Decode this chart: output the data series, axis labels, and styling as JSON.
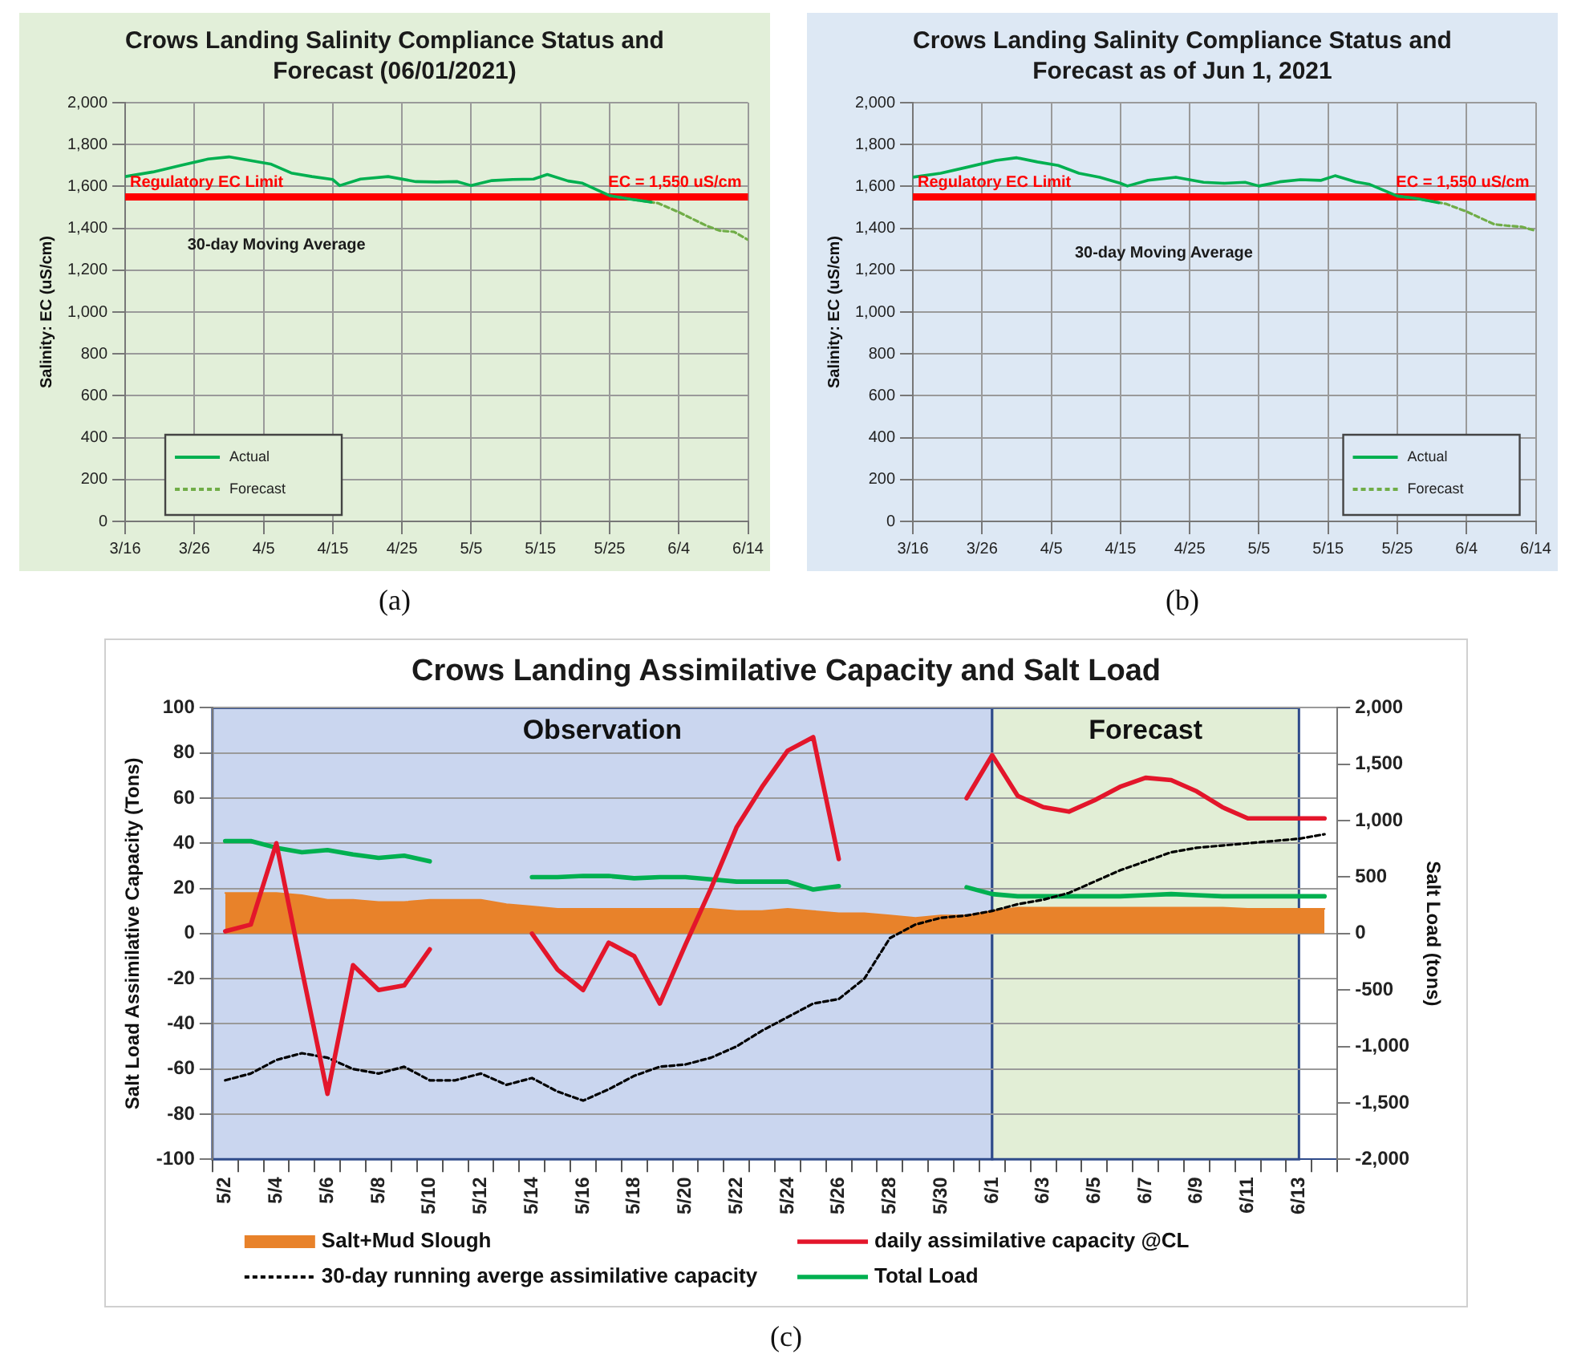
{
  "chart_data": [
    {
      "type": "line",
      "title": "Crows Landing Salinity Compliance Status and Forecast (06/01/2021)",
      "ylabel": "Salinity: EC (uS/cm)",
      "xlim": [
        "--03-16",
        "--06-14"
      ],
      "xticks": [
        {
          "value": "--03-16",
          "label": "3/16"
        },
        {
          "value": "--03-26",
          "label": "3/26"
        },
        {
          "value": "--04-05",
          "label": "4/5"
        },
        {
          "value": "--04-15",
          "label": "4/15"
        },
        {
          "value": "--04-25",
          "label": "4/25"
        },
        {
          "value": "--05-05",
          "label": "5/5"
        },
        {
          "value": "--05-15",
          "label": "5/15"
        },
        {
          "value": "--05-25",
          "label": "5/25"
        },
        {
          "value": "--06-04",
          "label": "6/4"
        },
        {
          "value": "--06-14",
          "label": "6/14"
        }
      ],
      "ylim": [
        0,
        2000
      ],
      "yticks": [
        0,
        200,
        400,
        600,
        800,
        {
          "value": 1000,
          "label": "1,000"
        },
        {
          "value": 1200,
          "label": "1,200"
        },
        {
          "value": 1400,
          "label": "1,400"
        },
        {
          "value": 1600,
          "label": "1,600"
        },
        {
          "value": 1800,
          "label": "1,800"
        },
        {
          "value": 2000,
          "label": "2,000"
        }
      ],
      "series": [
        {
          "name": "Actual",
          "color": "#00b050",
          "x": [
            "--03-16",
            "--03-20",
            "--03-24",
            "--03-28",
            "--03-31",
            "--04-03",
            "--04-06",
            "--04-09",
            "--04-12",
            "--04-15",
            "--04-16",
            "--04-19",
            "--04-23",
            "--04-27",
            "--04-30",
            "--05-03",
            "--05-05",
            "--05-08",
            "--05-11",
            "--05-14",
            "--05-16",
            "--05-19",
            "--05-21",
            "--05-25",
            "--05-28",
            "--05-31"
          ],
          "values": [
            1647,
            1669,
            1700,
            1731,
            1741,
            1724,
            1707,
            1664,
            1647,
            1633,
            1604,
            1635,
            1647,
            1623,
            1621,
            1623,
            1604,
            1628,
            1633,
            1635,
            1657,
            1626,
            1616,
            1556,
            1539,
            1525
          ]
        },
        {
          "name": "Forecast",
          "color": "#70ad47",
          "line_style": "dashed",
          "x": [
            "--05-25",
            "--05-28",
            "--06-01",
            "--06-04",
            "--06-08",
            "--06-10",
            "--06-12",
            "--06-14"
          ],
          "values": [
            1556,
            1539,
            1520,
            1477,
            1412,
            1388,
            1383,
            1345
          ]
        }
      ],
      "ref_lines": [
        {
          "axis": "y",
          "value": 1550,
          "label": "EC = 1,550 uS/cm",
          "color": "#ff0000"
        }
      ],
      "annotations": [
        {
          "text": "Regulatory EC Limit",
          "x": "--03-16",
          "y": 1550
        },
        "30-day Moving Average",
        "(a)"
      ],
      "grid": true,
      "legend": "bottom left"
    },
    {
      "type": "line",
      "title": "Crows Landing Salinity Compliance Status and Forecast as of Jun 1, 2021",
      "ylabel": "Salinity: EC (uS/cm)",
      "xlim": [
        "--03-16",
        "--06-14"
      ],
      "xticks": [
        {
          "value": "--03-16",
          "label": "3/16"
        },
        {
          "value": "--03-26",
          "label": "3/26"
        },
        {
          "value": "--04-05",
          "label": "4/5"
        },
        {
          "value": "--04-15",
          "label": "4/15"
        },
        {
          "value": "--04-25",
          "label": "4/25"
        },
        {
          "value": "--05-05",
          "label": "5/5"
        },
        {
          "value": "--05-15",
          "label": "5/15"
        },
        {
          "value": "--05-25",
          "label": "5/25"
        },
        {
          "value": "--06-04",
          "label": "6/4"
        },
        {
          "value": "--06-14",
          "label": "6/14"
        }
      ],
      "ylim": [
        0,
        2000
      ],
      "yticks": [
        0,
        200,
        400,
        600,
        800,
        {
          "value": 1000,
          "label": "1,000"
        },
        {
          "value": 1200,
          "label": "1,200"
        },
        {
          "value": 1400,
          "label": "1,400"
        },
        {
          "value": 1600,
          "label": "1,600"
        },
        {
          "value": 1800,
          "label": "1,800"
        },
        {
          "value": 2000,
          "label": "2,000"
        }
      ],
      "series": [
        {
          "name": "Actual",
          "color": "#00b050",
          "x": [
            "--03-16",
            "--03-20",
            "--03-24",
            "--03-28",
            "--03-31",
            "--04-03",
            "--04-06",
            "--04-09",
            "--04-12",
            "--04-15",
            "--04-16",
            "--04-19",
            "--04-23",
            "--04-27",
            "--04-30",
            "--05-03",
            "--05-05",
            "--05-08",
            "--05-11",
            "--05-14",
            "--05-16",
            "--05-19",
            "--05-21",
            "--05-25",
            "--05-28",
            "--05-31"
          ],
          "values": [
            1644,
            1663,
            1693,
            1724,
            1737,
            1717,
            1700,
            1663,
            1644,
            1615,
            1602,
            1629,
            1644,
            1620,
            1615,
            1620,
            1602,
            1622,
            1632,
            1629,
            1651,
            1622,
            1610,
            1554,
            1541,
            1522
          ]
        },
        {
          "name": "Forecast",
          "color": "#70ad47",
          "line_style": "dashed",
          "x": [
            "--05-25",
            "--05-28",
            "--06-01",
            "--06-04",
            "--06-08",
            "--06-10",
            "--06-12",
            "--06-14"
          ],
          "values": [
            1554,
            1541,
            1517,
            1480,
            1419,
            1412,
            1407,
            1388
          ]
        }
      ],
      "ref_lines": [
        {
          "axis": "y",
          "value": 1550,
          "label": "EC = 1,550 uS/cm",
          "color": "#ff0000"
        }
      ],
      "annotations": [
        {
          "text": "Regulatory EC Limit",
          "x": "--03-16",
          "y": 1550
        },
        "30-day Moving Average",
        "(b)"
      ],
      "grid": true,
      "legend": "bottom right"
    },
    {
      "type": "line",
      "title": "Crows Landing Assimilative Capacity and Salt Load",
      "ylabel": "Salt Load Assimilative Capacity (Tons)",
      "y2label": "Salt Load (tons)",
      "categories": [
        "5/2",
        null,
        "5/4",
        null,
        "5/6",
        null,
        "5/8",
        null,
        "5/10",
        null,
        "5/12",
        null,
        "5/14",
        null,
        "5/16",
        null,
        "5/18",
        null,
        "5/20",
        null,
        "5/22",
        null,
        "5/24",
        null,
        "5/26",
        null,
        "5/28",
        null,
        "5/30",
        null,
        "6/1",
        null,
        "6/3",
        null,
        "6/5",
        null,
        "6/7",
        null,
        "6/9",
        null,
        "6/11",
        null,
        "6/13",
        null
      ],
      "ylim": [
        -100,
        100
      ],
      "yticks": [
        -100,
        -80,
        -60,
        -40,
        -20,
        0,
        20,
        40,
        60,
        80,
        100
      ],
      "y2lim": [
        -2000,
        2000
      ],
      "y2ticks": [
        {
          "value": -2000,
          "label": "-2,000"
        },
        {
          "value": -1500,
          "label": "-1,500"
        },
        {
          "value": -1000,
          "label": "-1,000"
        },
        -500,
        0,
        500,
        {
          "value": 1000,
          "label": "1,000"
        },
        {
          "value": 1500,
          "label": "1,500"
        },
        {
          "value": 2000,
          "label": "2,000"
        }
      ],
      "series": [
        {
          "name": "Salt+Mud Slough",
          "type": "area",
          "axis": "y2",
          "color": "#e8822a",
          "values": [
            360,
            360,
            360,
            340,
            300,
            300,
            280,
            280,
            300,
            300,
            300,
            260,
            240,
            220,
            220,
            220,
            220,
            220,
            220,
            220,
            200,
            200,
            220,
            200,
            180,
            180,
            160,
            140,
            160,
            160,
            200,
            230,
            230,
            230,
            230,
            230,
            230,
            230,
            230,
            230,
            220,
            220,
            220,
            220
          ]
        },
        {
          "name": "daily assimilative capacity @CL",
          "color": "#e3162b",
          "values": [
            1,
            4,
            40,
            -16,
            -71,
            -14,
            -25,
            -23,
            -7,
            null,
            null,
            null,
            0,
            -16,
            -25,
            -4,
            -10,
            -31,
            -5,
            20,
            47,
            65,
            81,
            87,
            33,
            null,
            null,
            null,
            null,
            60,
            79,
            61,
            56,
            54,
            59,
            65,
            69,
            68,
            63,
            56,
            51,
            51,
            51,
            51
          ]
        },
        {
          "name": "30-day running averge assimilative capacity",
          "color": "#000000",
          "line_style": "dashed",
          "values": [
            -65,
            -62,
            -56,
            -53,
            -55,
            -60,
            -62,
            -59,
            -65,
            -65,
            -62,
            -67,
            -64,
            -70,
            -74,
            -69,
            -63,
            -59,
            -58,
            -55,
            -50,
            -43,
            -37,
            -31,
            -29,
            -20,
            -2,
            4,
            7,
            8,
            10,
            13,
            15,
            18,
            23,
            28,
            32,
            36,
            38,
            39,
            40,
            41,
            42,
            44
          ]
        },
        {
          "name": "Total Load",
          "axis": "y2",
          "color": "#00b050",
          "values": [
            820,
            820,
            760,
            720,
            740,
            700,
            670,
            690,
            640,
            null,
            null,
            null,
            500,
            500,
            510,
            510,
            490,
            500,
            500,
            480,
            460,
            460,
            460,
            390,
            420,
            null,
            null,
            null,
            null,
            410,
            350,
            330,
            330,
            330,
            330,
            330,
            340,
            350,
            340,
            330,
            330,
            330,
            330,
            330
          ]
        }
      ],
      "bands": [
        {
          "axis": "x",
          "from": "5/2",
          "to": "6/1",
          "label": "Observation",
          "color": "#cad6ef"
        },
        {
          "axis": "x",
          "from": "6/1",
          "to": "6/13",
          "label": "Forecast",
          "color": "#e2eed6"
        }
      ],
      "annotations": [
        "(c)"
      ],
      "grid": "y",
      "legend": "bottom"
    }
  ]
}
